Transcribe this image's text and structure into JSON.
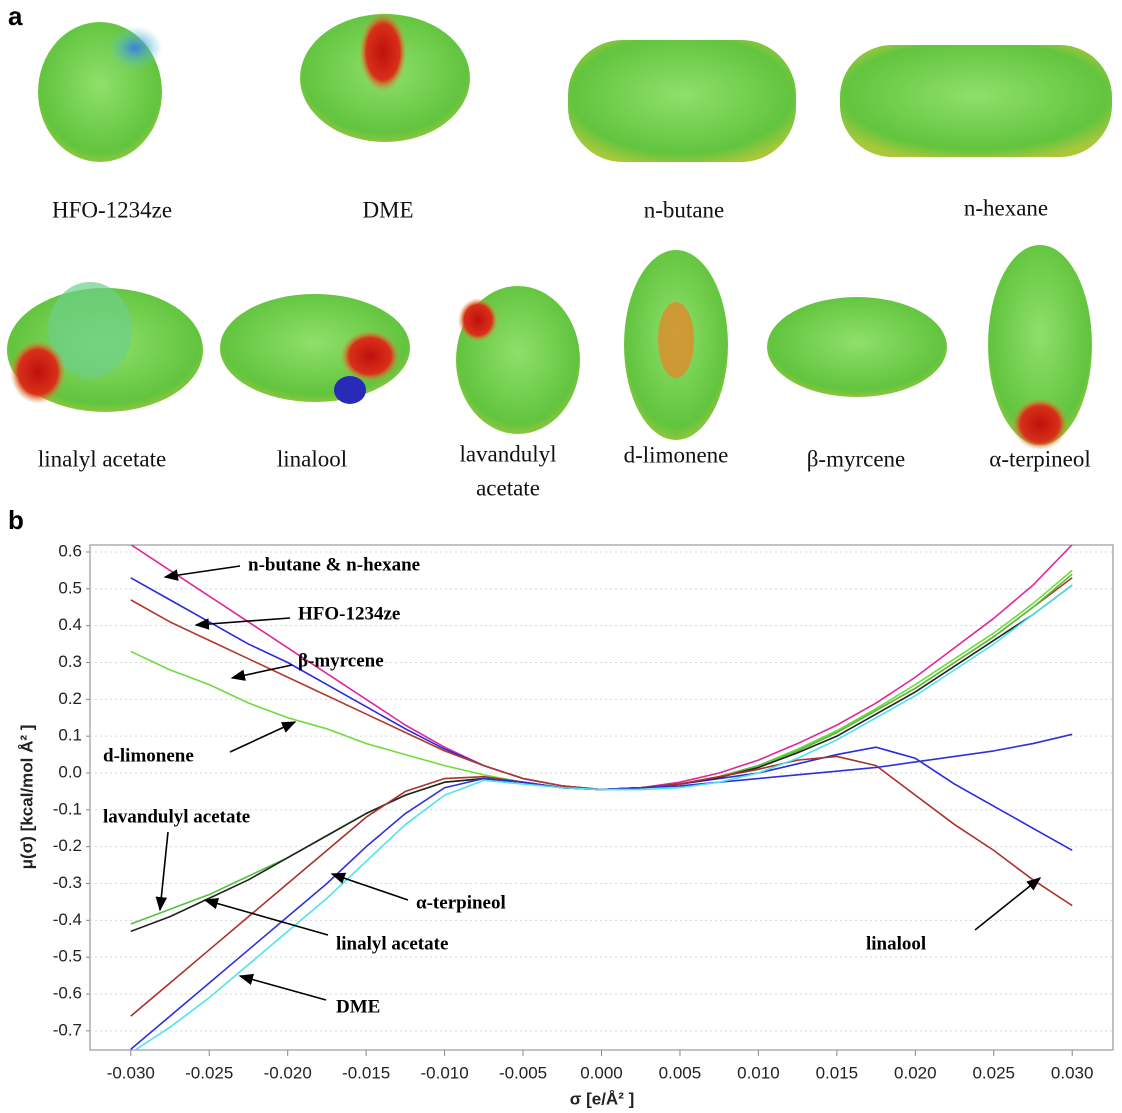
{
  "panel_a": {
    "label": "a",
    "row1": [
      "HFO-1234ze",
      "DME",
      "n-butane",
      "n-hexane"
    ],
    "row2": [
      "linalyl acetate",
      "linalool",
      [
        "lavandulyl",
        "acetate"
      ],
      "d-limonene",
      "β-myrcene",
      "α-terpineol"
    ]
  },
  "chart_data": {
    "type": "line",
    "panel_label": "b",
    "x_label": "σ [e/Å² ]",
    "y_label": "μ(σ) [kcal/mol Å² ]",
    "x": [
      -0.03,
      -0.0275,
      -0.025,
      -0.0225,
      -0.02,
      -0.0175,
      -0.015,
      -0.0125,
      -0.01,
      -0.0075,
      -0.005,
      -0.0025,
      0,
      0.0025,
      0.005,
      0.0075,
      0.01,
      0.0125,
      0.015,
      0.0175,
      0.02,
      0.0225,
      0.025,
      0.0275,
      0.03
    ],
    "xlim": [
      -0.0326,
      0.0326
    ],
    "ylim": [
      -0.752,
      0.619
    ],
    "grid": true,
    "xticks": [
      {
        "value": -0.03,
        "label": "-0.030"
      },
      {
        "value": -0.025,
        "label": "-0.025"
      },
      {
        "value": -0.02,
        "label": "-0.020"
      },
      {
        "value": -0.015,
        "label": "-0.015"
      },
      {
        "value": -0.01,
        "label": "-0.010"
      },
      {
        "value": -0.005,
        "label": "-0.005"
      },
      {
        "value": 0,
        "label": "0.000"
      },
      {
        "value": 0.005,
        "label": "0.005"
      },
      {
        "value": 0.01,
        "label": "0.010"
      },
      {
        "value": 0.015,
        "label": "0.015"
      },
      {
        "value": 0.02,
        "label": "0.020"
      },
      {
        "value": 0.025,
        "label": "0.025"
      },
      {
        "value": 0.03,
        "label": "0.030"
      }
    ],
    "yticks": [
      0.6,
      0.5,
      0.4,
      0.3,
      0.2,
      0.1,
      {
        "value": 0,
        "label": "0.0"
      },
      -0.1,
      -0.2,
      -0.3,
      -0.4,
      -0.5,
      -0.6,
      -0.7
    ],
    "series": [
      {
        "color": "#e0279c",
        "values": [
          0.62,
          0.55,
          0.48,
          0.41,
          0.34,
          0.27,
          0.2,
          0.13,
          0.07,
          0.02,
          -0.015,
          -0.035,
          -0.045,
          -0.04,
          -0.025,
          0.0,
          0.035,
          0.08,
          0.13,
          0.19,
          0.26,
          0.34,
          0.42,
          0.51,
          0.62
        ]
      },
      {
        "color": "#2a2ae0",
        "values": [
          0.53,
          0.47,
          0.41,
          0.35,
          0.3,
          0.24,
          0.18,
          0.12,
          0.065,
          0.02,
          -0.015,
          -0.035,
          -0.045,
          -0.04,
          -0.03,
          -0.015,
          0.0,
          0.025,
          0.05,
          0.07,
          0.04,
          -0.03,
          -0.09,
          -0.15,
          -0.21
        ]
      },
      {
        "color": "#b03a2e",
        "values": [
          0.47,
          0.41,
          0.36,
          0.31,
          0.26,
          0.21,
          0.16,
          0.11,
          0.06,
          0.02,
          -0.015,
          -0.035,
          -0.045,
          -0.04,
          -0.03,
          -0.01,
          0.02,
          0.06,
          0.11,
          0.17,
          0.23,
          0.3,
          0.37,
          0.45,
          0.53
        ]
      },
      {
        "color": "#6edc3c",
        "values": [
          0.33,
          0.28,
          0.24,
          0.19,
          0.15,
          0.12,
          0.08,
          0.05,
          0.02,
          -0.005,
          -0.025,
          -0.04,
          -0.045,
          -0.04,
          -0.03,
          -0.01,
          0.02,
          0.065,
          0.115,
          0.175,
          0.24,
          0.31,
          0.38,
          0.46,
          0.55
        ]
      },
      {
        "color": "#52c43a",
        "values": [
          -0.41,
          -0.37,
          -0.33,
          -0.28,
          -0.23,
          -0.17,
          -0.11,
          -0.06,
          -0.025,
          -0.015,
          -0.025,
          -0.04,
          -0.045,
          -0.04,
          -0.03,
          -0.01,
          0.02,
          0.06,
          0.11,
          0.17,
          0.23,
          0.3,
          0.37,
          0.45,
          0.54
        ]
      },
      {
        "color": "#222222",
        "values": [
          -0.43,
          -0.39,
          -0.34,
          -0.29,
          -0.23,
          -0.17,
          -0.11,
          -0.06,
          -0.025,
          -0.015,
          -0.025,
          -0.04,
          -0.045,
          -0.04,
          -0.03,
          -0.012,
          0.015,
          0.055,
          0.1,
          0.16,
          0.22,
          0.29,
          0.36,
          0.43,
          0.51
        ]
      },
      {
        "color": "#a8322a",
        "values": [
          -0.66,
          -0.57,
          -0.48,
          -0.39,
          -0.3,
          -0.21,
          -0.12,
          -0.05,
          -0.015,
          -0.01,
          -0.025,
          -0.04,
          -0.045,
          -0.04,
          -0.03,
          -0.01,
          0.01,
          0.035,
          0.045,
          0.02,
          -0.06,
          -0.14,
          -0.21,
          -0.29,
          -0.36
        ]
      },
      {
        "color": "#3030d8",
        "values": [
          -0.75,
          -0.66,
          -0.57,
          -0.48,
          -0.39,
          -0.3,
          -0.2,
          -0.11,
          -0.04,
          -0.015,
          -0.025,
          -0.04,
          -0.045,
          -0.04,
          -0.035,
          -0.025,
          -0.015,
          -0.005,
          0.005,
          0.015,
          0.03,
          0.045,
          0.06,
          0.08,
          0.105
        ]
      },
      {
        "color": "#4fe3ee",
        "values": [
          -0.76,
          -0.69,
          -0.61,
          -0.52,
          -0.43,
          -0.34,
          -0.24,
          -0.14,
          -0.06,
          -0.02,
          -0.03,
          -0.04,
          -0.045,
          -0.045,
          -0.04,
          -0.025,
          0.0,
          0.04,
          0.09,
          0.15,
          0.21,
          0.28,
          0.35,
          0.43,
          0.51
        ]
      }
    ],
    "annotations": [
      "n-butane & n-hexane",
      "HFO-1234ze",
      "β-myrcene",
      "d-limonene",
      "lavandulyl acetate",
      "α-terpineol",
      "linalyl acetate",
      "DME",
      "linalool"
    ]
  }
}
